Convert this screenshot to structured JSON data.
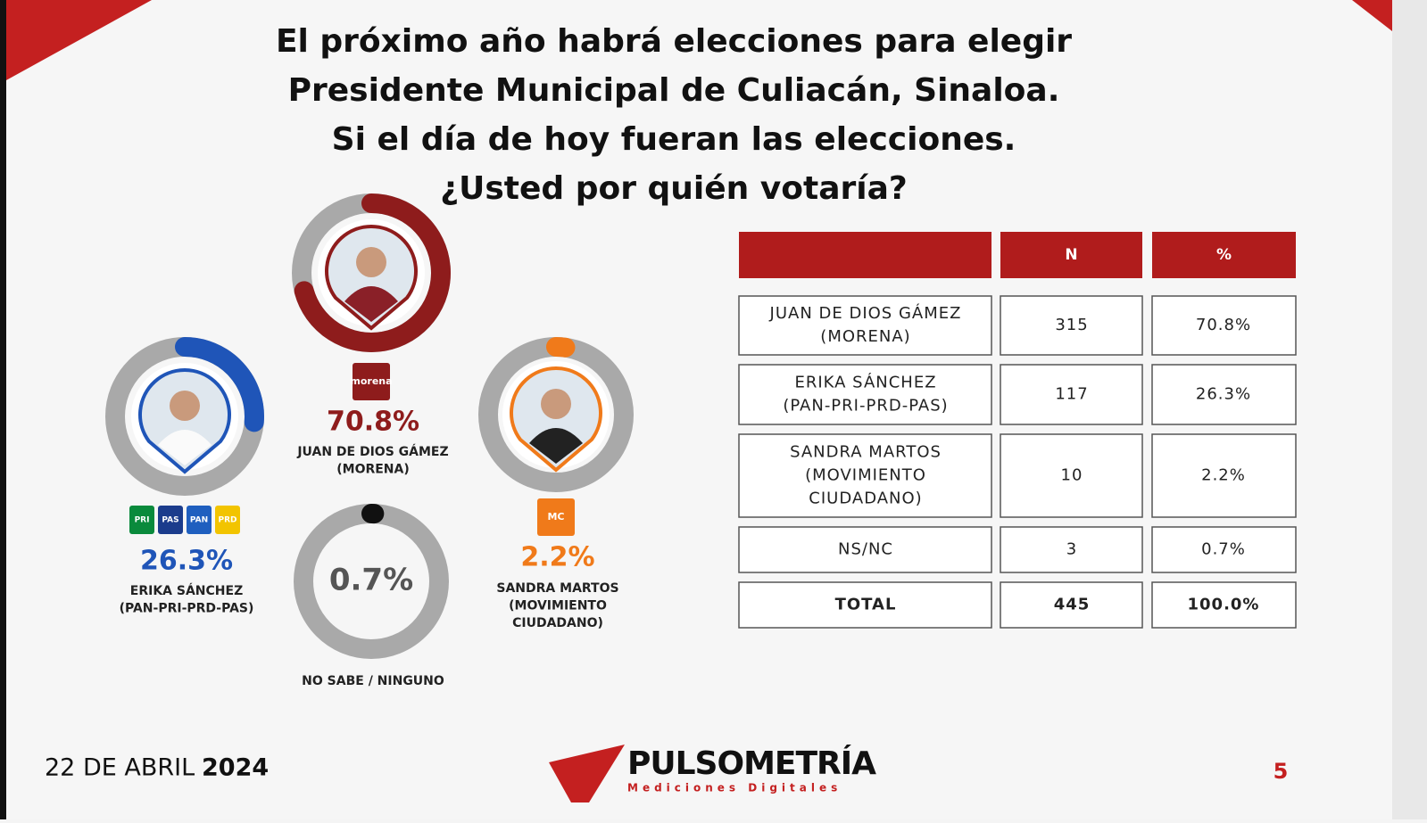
{
  "header": {
    "title_lines": [
      "El próximo año habrá elecciones para elegir",
      "Presidente Municipal de Culiacán, Sinaloa.",
      "Si el día de hoy fueran las elecciones.",
      "¿Usted por quién votaría?"
    ]
  },
  "candidates": [
    {
      "name_lines": [
        "JUAN DE DIOS GÁMEZ",
        "(MORENA)"
      ],
      "value": 70.8,
      "value_label": "70.8%",
      "color": "#8e1c1c",
      "party_logos": [
        "morena"
      ]
    },
    {
      "name_lines": [
        "ERIKA SÁNCHEZ",
        "(PAN-PRI-PRD-PAS)"
      ],
      "value": 26.3,
      "value_label": "26.3%",
      "color": "#1f55b8",
      "party_logos": [
        "PRI",
        "PAS",
        "PAN",
        "PRD"
      ]
    },
    {
      "name_lines": [
        "SANDRA MARTOS",
        "(MOVIMIENTO",
        "CIUDADANO)"
      ],
      "value": 2.2,
      "value_label": "2.2%",
      "color": "#f07a1a",
      "party_logos": [
        "MC"
      ]
    },
    {
      "name_lines": [
        "NO SABE /  NINGUNO"
      ],
      "value": 0.7,
      "value_label": "0.7%",
      "color": "#111111",
      "party_logos": []
    }
  ],
  "table": {
    "columns": [
      "N",
      "%"
    ],
    "rows": [
      {
        "label_lines": [
          "JUAN DE DIOS GÁMEZ",
          "(MORENA)"
        ],
        "n": 315,
        "pct": "70.8%"
      },
      {
        "label_lines": [
          "ERIKA SÁNCHEZ",
          "(PAN-PRI-PRD-PAS)"
        ],
        "n": 117,
        "pct": "26.3%"
      },
      {
        "label_lines": [
          "SANDRA MARTOS",
          "(MOVIMIENTO",
          "CIUDADANO)"
        ],
        "n": 10,
        "pct": "2.2%"
      },
      {
        "label_lines": [
          "NS/NC"
        ],
        "n": 3,
        "pct": "0.7%"
      },
      {
        "label_lines": [
          "TOTAL"
        ],
        "n": 445,
        "pct": "100.0%"
      }
    ]
  },
  "footer": {
    "date": "22 DE ABRIL",
    "year": "2024",
    "brand": "PULSOMETRÍA",
    "tagline": "Mediciones Digitales",
    "page": "5"
  }
}
